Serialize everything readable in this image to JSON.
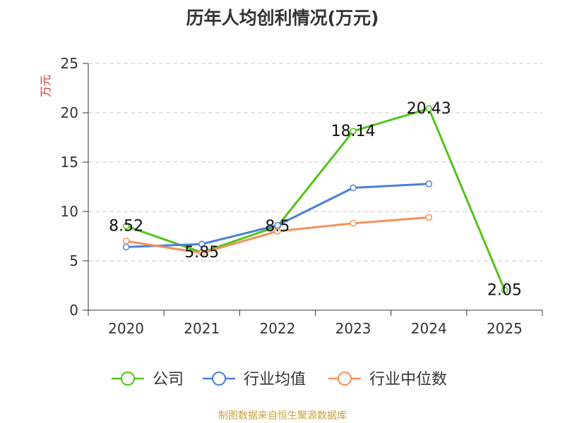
{
  "chart_data": {
    "type": "line",
    "title": "历年人均创利情况(万元)",
    "ylabel": "万元",
    "xlabel": "",
    "categories": [
      "2020",
      "2021",
      "2022",
      "2023",
      "2024",
      "2025"
    ],
    "ylim": [
      0,
      25
    ],
    "yticks": [
      0,
      5,
      10,
      15,
      20,
      25
    ],
    "grid": true,
    "legend_position": "bottom",
    "series": [
      {
        "name": "公司",
        "color": "#52c41a",
        "values": [
          8.52,
          5.85,
          8.5,
          18.14,
          20.43,
          2.05
        ],
        "data_labels": [
          "8.52",
          "5.85",
          "8.5",
          "18.14",
          "20.43",
          "2.05"
        ]
      },
      {
        "name": "行业均值",
        "color": "#4a7fd6",
        "values": [
          6.4,
          6.7,
          8.6,
          12.4,
          12.8,
          null
        ]
      },
      {
        "name": "行业中位数",
        "color": "#f4915a",
        "values": [
          7.0,
          5.8,
          8.0,
          8.8,
          9.4,
          null
        ]
      }
    ]
  },
  "footer": {
    "source": "制图数据来自恒生聚源数据库"
  }
}
